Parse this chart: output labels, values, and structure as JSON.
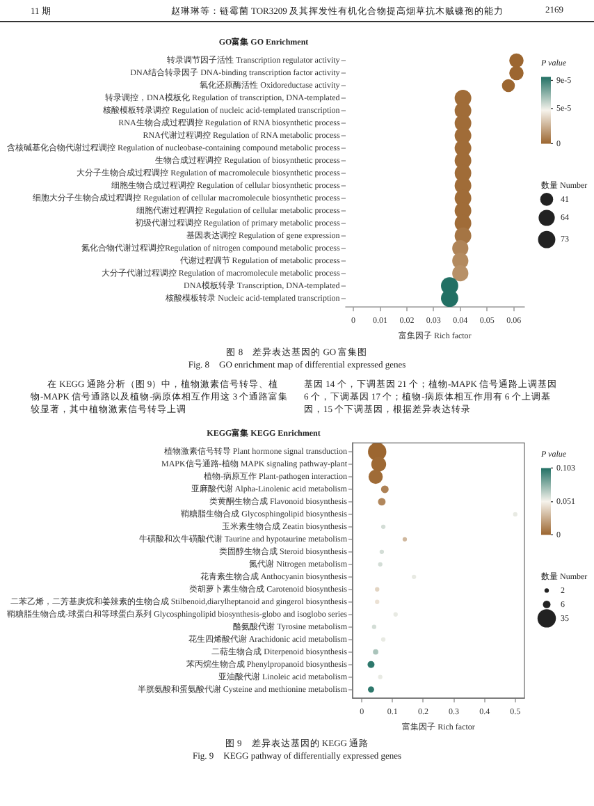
{
  "chart_data": [
    {
      "type": "bubble",
      "orientation": "horizontal",
      "title": "GO富集 GO Enrichment",
      "xlabel": "富集因子 Rich factor",
      "clabel": "P value",
      "legend_title": "数量 Number",
      "categories": [
        "转录调节因子活性 Transcription regulator activity",
        "DNA结合转录因子 DNA-binding transcription factor activity",
        "氧化还原酶活性 Oxidoreductase activity",
        "转录调控，DNA模板化 Regulation of transcription, DNA-templated",
        "核酸模板转录调控 Regulation of nucleic acid-templated transcription",
        "RNA生物合成过程调控 Regulation of RNA biosynthetic process",
        "RNA代谢过程调控 Regulation of RNA metabolic process",
        "含核碱基化合物代谢过程调控 Regulation of nucleobase-containing compound metabolic process",
        "生物合成过程调控 Regulation of biosynthetic process",
        "大分子生物合成过程调控 Regulation of macromolecule biosynthetic process",
        "细胞生物合成过程调控 Regulation of cellular biosynthetic process",
        "细胞大分子生物合成过程调控 Regulation of cellular macromolecule biosynthetic process",
        "细胞代谢过程调控 Regulation of cellular metabolic process",
        "初级代谢过程调控 Regulation of primary metabolic process",
        "基因表达调控 Regulation of gene expression",
        "氮化合物代谢过程调控Regulation of nitrogen compound metabolic process",
        "代谢过程调节 Regulation of metabolic process",
        "大分子代谢过程调控 Regulation of macromolecule metabolic process",
        "DNA模板转录 Transcription, DNA-templated",
        "核酸模板转录 Nucleic acid-templated transcription"
      ],
      "values": [
        0.061,
        0.061,
        0.058,
        0.041,
        0.041,
        0.041,
        0.041,
        0.041,
        0.041,
        0.041,
        0.041,
        0.041,
        0.041,
        0.041,
        0.041,
        0.04,
        0.04,
        0.04,
        0.036,
        0.036
      ],
      "sizes": [
        50,
        50,
        41,
        68,
        68,
        68,
        68,
        68,
        68,
        68,
        68,
        68,
        68,
        68,
        68,
        64,
        64,
        64,
        73,
        73
      ],
      "cvalues": [
        0,
        0,
        0,
        2e-06,
        2e-06,
        2e-06,
        2e-06,
        2e-06,
        2e-06,
        2e-06,
        2e-06,
        2e-06,
        2e-06,
        2e-06,
        5e-06,
        1e-05,
        1.2e-05,
        1.4e-05,
        9.5e-05,
        9.5e-05
      ],
      "size_legend": [
        41,
        64,
        73
      ],
      "clim": [
        0,
        9.5e-05
      ],
      "cticks": [
        0,
        {
          "value": 5e-05,
          "label": "5e-5"
        },
        {
          "value": 9e-05,
          "label": "9e-5"
        }
      ],
      "xlim": [
        -0.003,
        0.064
      ],
      "xticks": [
        0,
        0.01,
        0.02,
        0.03,
        0.04,
        0.05,
        0.06
      ],
      "annotations": [
        "11 期",
        "赵琳琳等：链霉菌 TOR3209 及其挥发性有机化合物提高烟草抗木贼镰孢的能力",
        "2169",
        "图 8　差异表达基因的 GO 富集图",
        "Fig. 8　GO enrichment map of differential expressed genes",
        "在 KEGG 通路分析（图 9）中，植物激素信号转导、植物-MAPK 信号通路以及植物-病原体相互作用这 3 个通路富集较显著，其中植物激素信号转导上调",
        "基因 14 个，下调基因 21 个；植物-MAPK 信号通路上调基因 6 个，下调基因 17 个；植物-病原体相互作用有 6 个上调基因，15 个下调基因，根据差异表达转录"
      ]
    },
    {
      "type": "bubble",
      "orientation": "horizontal",
      "title": "KEGG富集 KEGG Enrichment",
      "xlabel": "富集因子 Rich factor",
      "clabel": "P value",
      "legend_title": "数量 Number",
      "categories": [
        "植物激素信号转导 Plant hormone signal transduction",
        "MAPK信号通路-植物 MAPK signaling pathway-plant",
        "植物-病原互作 Plant-pathogen interaction",
        "亚麻酸代谢 Alpha-Linolenic acid metabolism",
        "类黄酮生物合成 Flavonoid biosynthesis",
        "鞘糖脂生物合成 Glycosphingolipid biosynthesis",
        "玉米素生物合成 Zeatin biosynthesis",
        "牛磺酸和次牛磺酸代谢 Taurine and hypotaurine metabolism",
        "类固醇生物合成 Steroid biosynthesis",
        "氮代谢 Nitrogen metabolism",
        "花青素生物合成 Anthocyanin biosynthesis",
        "类胡萝卜素生物合成 Carotenoid biosynthesis",
        "二苯乙烯，二芳基庚烷和姜辣素的生物合成 Stilbenoid,diarylheptanoid and gingerol biosynthesis",
        "鞘糖脂生物合成-球蛋白和等球蛋白系列 Glycosphingolipid biosynthesis-globo and isoglobo series",
        "酪氨酸代谢 Tyrosine metabolism",
        "花生四烯酸代谢 Arachidonic acid metabolism",
        "二萜生物合成 Diterpenoid biosynthesis",
        "苯丙烷生物合成 Phenylpropanoid biosynthesis",
        "亚油酸代谢 Linoleic acid metabolism",
        "半胱氨酸和蛋氨酸代谢 Cysteine and methionine metabolism"
      ],
      "values": [
        0.05,
        0.055,
        0.045,
        0.075,
        0.065,
        0.5,
        0.07,
        0.14,
        0.065,
        0.06,
        0.17,
        0.05,
        0.05,
        0.11,
        0.04,
        0.07,
        0.045,
        0.03,
        0.06,
        0.03
      ],
      "sizes": [
        35,
        23,
        21,
        6,
        6,
        2,
        2,
        2,
        2,
        2,
        2,
        2,
        2,
        2,
        2,
        2,
        3,
        5,
        2,
        4
      ],
      "cvalues": [
        0,
        0.001,
        0.002,
        0.01,
        0.012,
        0.055,
        0.06,
        0.03,
        0.06,
        0.06,
        0.055,
        0.04,
        0.045,
        0.055,
        0.06,
        0.055,
        0.07,
        0.1,
        0.055,
        0.1
      ],
      "size_legend": [
        2,
        6,
        35
      ],
      "clim": [
        0,
        0.103
      ],
      "cticks": [
        0,
        0.051,
        0.103
      ],
      "xlim": [
        -0.03,
        0.53
      ],
      "xticks": [
        0,
        0.1,
        0.2,
        0.3,
        0.4,
        0.5
      ],
      "annotations": [
        "图 9　差异表达基因的 KEGG 通路",
        "Fig. 9　KEGG pathway of differentially expressed genes"
      ]
    }
  ]
}
